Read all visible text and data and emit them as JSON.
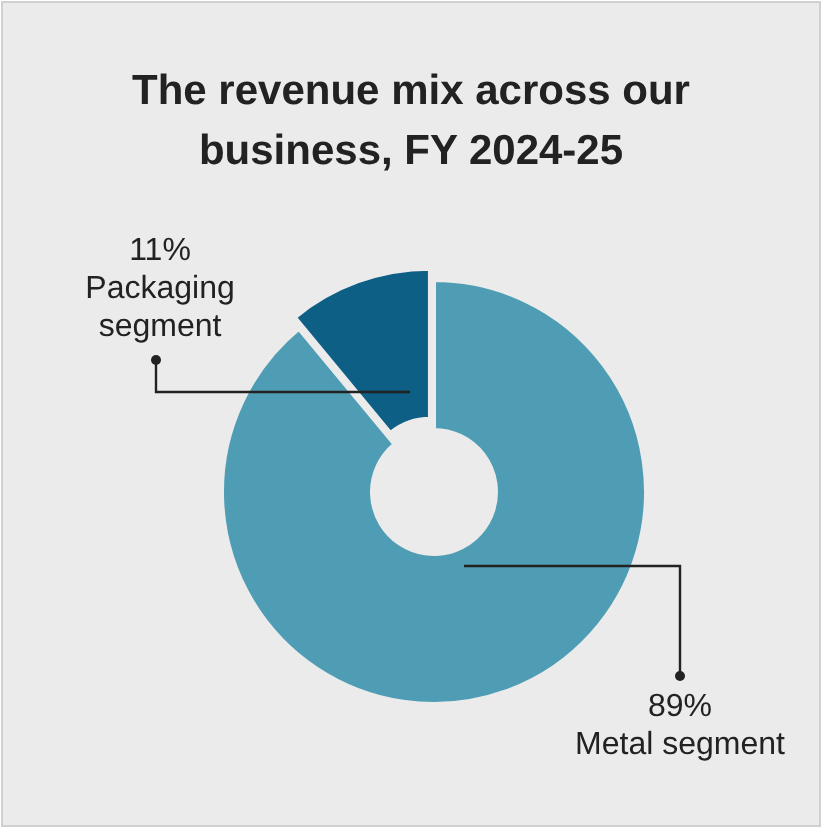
{
  "chart_data": {
    "type": "donut",
    "title": "The revenue mix across our business, FY 2024-25",
    "categories": [
      "Metal segment",
      "Packaging segment"
    ],
    "values": [
      89,
      11
    ],
    "value_labels": [
      "89%",
      "11%"
    ],
    "colors": [
      "#4f9db5",
      "#0d5f85"
    ]
  }
}
